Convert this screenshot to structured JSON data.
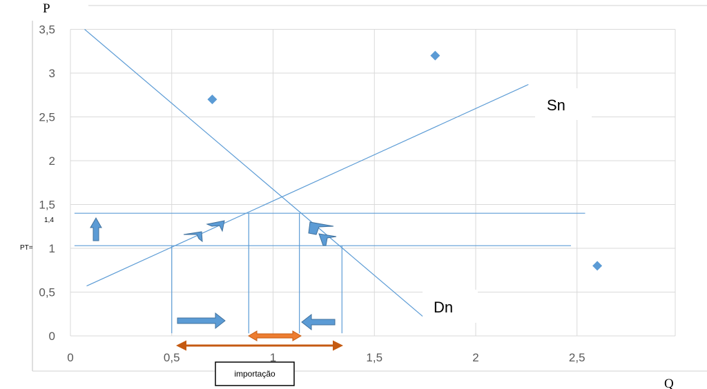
{
  "chart_data": {
    "type": "scatter",
    "xlabel": "Q",
    "ylabel": "P",
    "xlim": [
      0,
      2.75
    ],
    "ylim": [
      0,
      3.5
    ],
    "x_ticks": [
      0,
      0.5,
      1,
      1.5,
      2,
      2.5
    ],
    "x_tick_labels": [
      "0",
      "0,5",
      "1",
      "1,5",
      "2",
      "2,5"
    ],
    "y_ticks": [
      0,
      0.5,
      1,
      1.5,
      2,
      2.5,
      3,
      3.5
    ],
    "y_tick_labels": [
      "0",
      "0,5",
      "1",
      "1,5",
      "2",
      "2,5",
      "3",
      "3,5"
    ],
    "grid": true,
    "points": [
      {
        "x": 0.7,
        "y": 2.7
      },
      {
        "x": 1.8,
        "y": 3.2
      },
      {
        "x": 2.6,
        "y": 0.8
      }
    ],
    "lines": [
      {
        "name": "Sn",
        "x1": 0.08,
        "y1": 0.57,
        "x2": 2.26,
        "y2": 2.87
      },
      {
        "name": "Dn",
        "x1": 0.07,
        "y1": 3.5,
        "x2": 1.75,
        "y2": 0.2
      }
    ],
    "horizontal_lines": [
      {
        "y": 1.4,
        "x_from": 0.02,
        "x_to": 2.54
      },
      {
        "y": 1.03,
        "x_from": 0.02,
        "x_to": 2.47
      }
    ],
    "vertical_lines": [
      {
        "x": 0.5,
        "y_from": 0.03,
        "y_to": 1.03
      },
      {
        "x": 0.88,
        "y_from": 0.03,
        "y_to": 1.4
      },
      {
        "x": 1.13,
        "y_from": 0.03,
        "y_to": 1.4
      },
      {
        "x": 1.34,
        "y_from": 0.03,
        "y_to": 1.03
      }
    ],
    "annotations": {
      "price_label_high": "1,4",
      "price_label_low": "PT=",
      "import_box": "importação"
    },
    "colors": {
      "line": "#5b9bd5",
      "point": "#5b9bd5",
      "grid": "#d9d9d9",
      "block_arrow": "#4a7ebb",
      "import_arrow": "#c55a11",
      "import_arrow_fill": "#ed7d31"
    }
  }
}
